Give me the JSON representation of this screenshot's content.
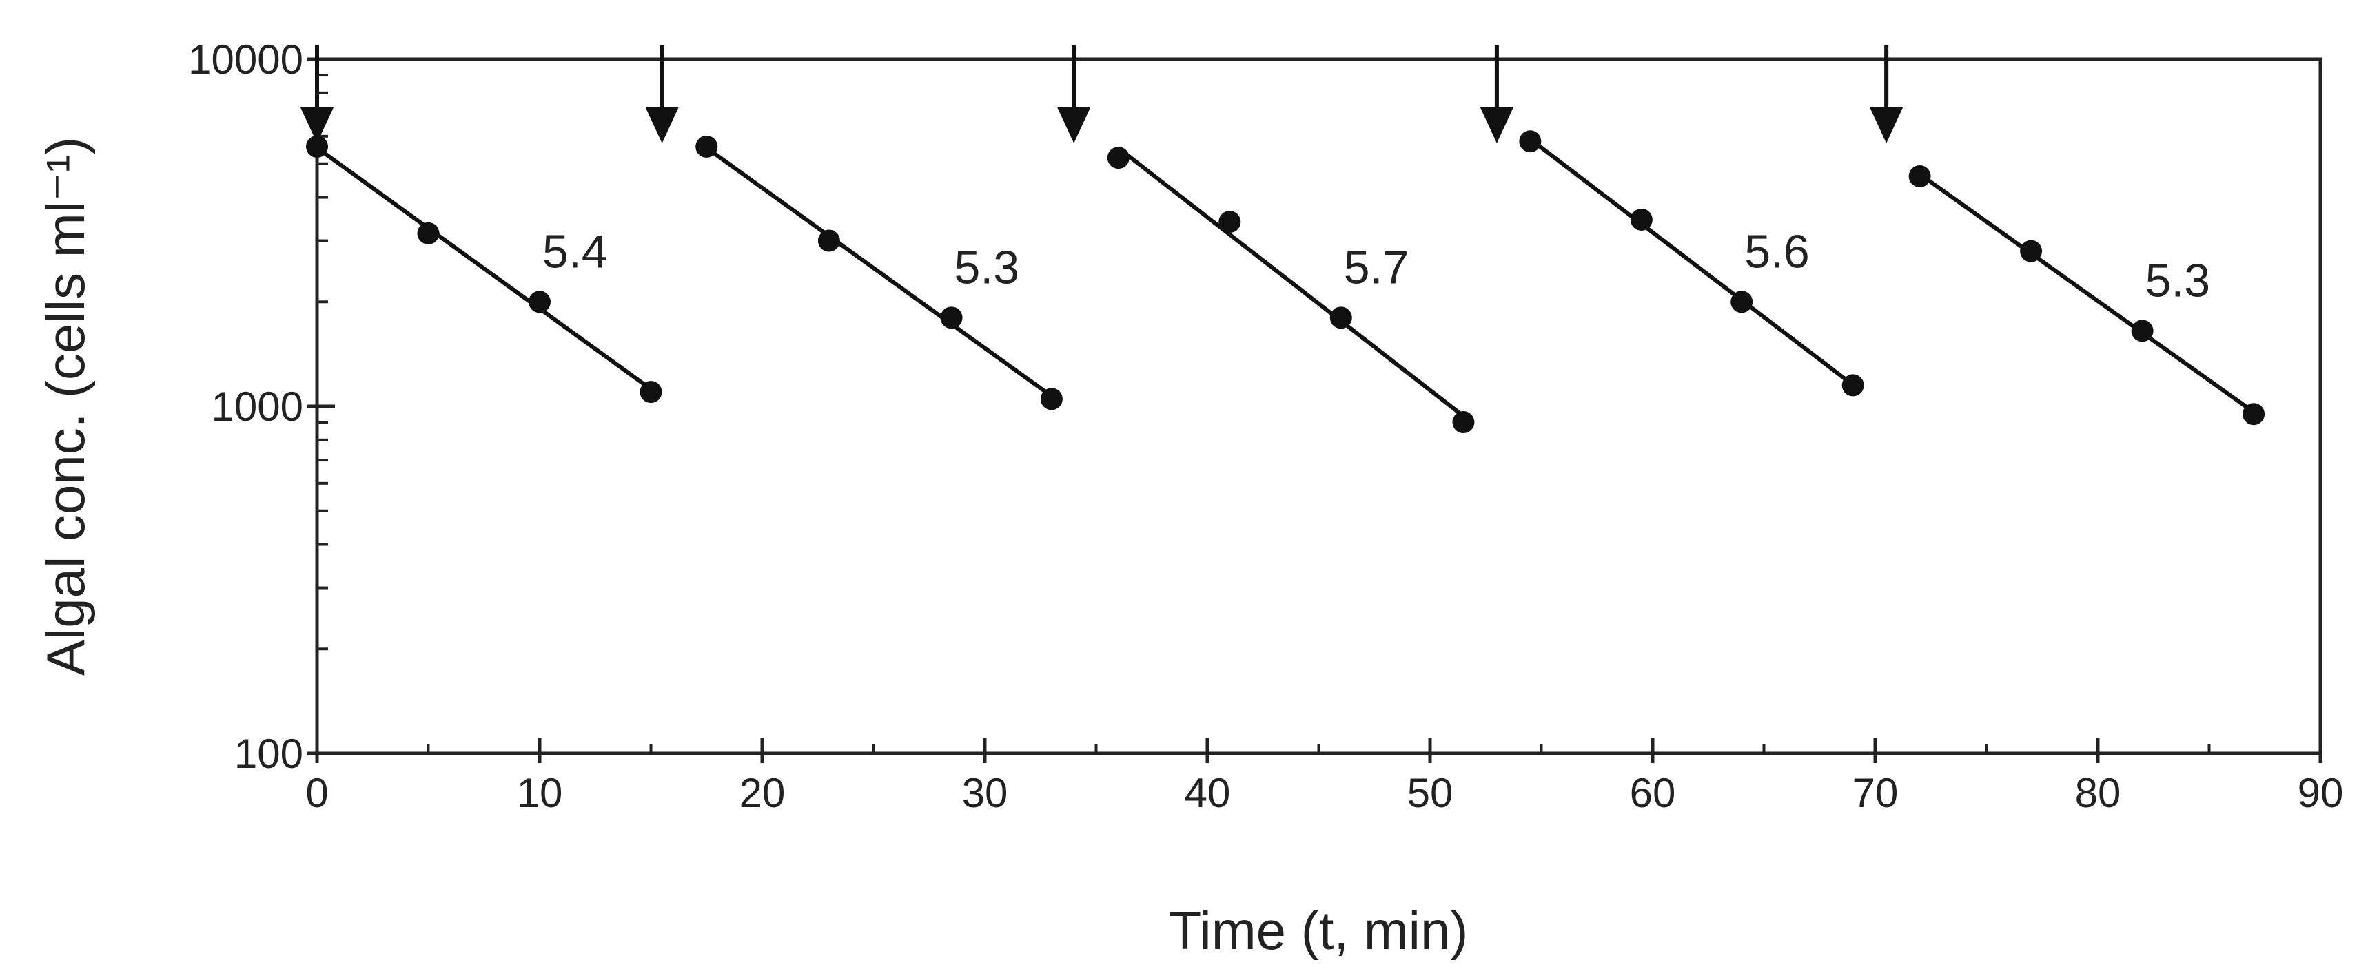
{
  "chart_data": {
    "type": "scatter",
    "title": "",
    "xlabel": "Time (t, min)",
    "ylabel": "Algal conc. (cells ml⁻¹)",
    "x_scale": "linear",
    "y_scale": "log",
    "xlim": [
      0,
      90
    ],
    "ylim": [
      100,
      10000
    ],
    "x_ticks": [
      "0",
      "10",
      "20",
      "30",
      "40",
      "50",
      "60",
      "70",
      "80",
      "90"
    ],
    "y_ticks": [
      "100",
      "1000",
      "10000"
    ],
    "grid": false,
    "legend": "none",
    "color": "#111111",
    "series": [
      {
        "label": "5.4",
        "x": [
          0,
          5,
          10,
          15
        ],
        "y": [
          5600,
          3150,
          2000,
          1100
        ]
      },
      {
        "label": "5.3",
        "x": [
          17.5,
          23,
          28.5,
          33
        ],
        "y": [
          5600,
          3000,
          1800,
          1050
        ]
      },
      {
        "label": "5.7",
        "x": [
          36,
          41,
          46,
          51.5
        ],
        "y": [
          5200,
          3400,
          1800,
          900
        ]
      },
      {
        "label": "5.6",
        "x": [
          54.5,
          59.5,
          64,
          69
        ],
        "y": [
          5800,
          3450,
          2000,
          1150
        ]
      },
      {
        "label": "5.3",
        "x": [
          72,
          77,
          82,
          87
        ],
        "y": [
          4600,
          2800,
          1650,
          950
        ]
      }
    ],
    "arrow_markers": {
      "x": [
        0,
        15.5,
        34,
        53,
        70.5
      ],
      "direction": "down"
    }
  }
}
